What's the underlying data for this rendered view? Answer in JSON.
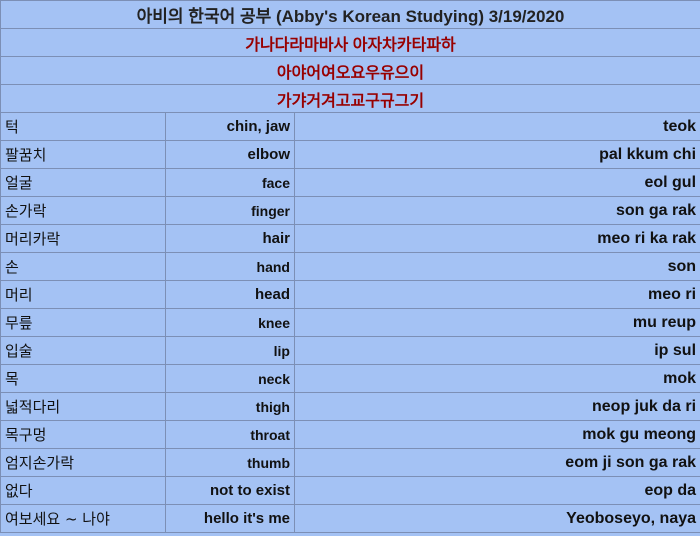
{
  "header": {
    "title": "아비의 한국어 공부 (Abby's Korean Studying)  3/19/2020",
    "line1": "가나다라마바사 아자차카타파하",
    "line2": "아야어여오요우유으이",
    "line3": "가갸거겨고교구규그기"
  },
  "rows": [
    {
      "ko": "턱",
      "en": "chin, jaw",
      "ro": "teok"
    },
    {
      "ko": "팔꿈치",
      "en": "elbow",
      "ro": "pal kkum chi"
    },
    {
      "ko": "얼굴",
      "en": "face",
      "ro": "eol gul"
    },
    {
      "ko": "손가락",
      "en": "finger",
      "ro": "son ga rak"
    },
    {
      "ko": "머리카락",
      "en": "hair",
      "ro": "meo ri ka rak"
    },
    {
      "ko": "손",
      "en": "hand",
      "ro": "son"
    },
    {
      "ko": "머리",
      "en": "head",
      "ro": "meo ri"
    },
    {
      "ko": "무릎",
      "en": "knee",
      "ro": "mu reup"
    },
    {
      "ko": "입술",
      "en": "lip",
      "ro": "ip sul"
    },
    {
      "ko": "목",
      "en": "neck",
      "ro": "mok"
    },
    {
      "ko": "넓적다리",
      "en": "thigh",
      "ro": "neop juk da ri"
    },
    {
      "ko": "목구멍",
      "en": "throat",
      "ro": "mok gu meong"
    },
    {
      "ko": "엄지손가락",
      "en": "thumb",
      "ro": "eom ji son ga rak"
    },
    {
      "ko": "없다",
      "en": "not to exist",
      "ro": "eop da"
    },
    {
      "ko": "여보세요 ~ 나야",
      "en": "hello it's me",
      "ro": "Yeoboseyo, naya"
    }
  ]
}
